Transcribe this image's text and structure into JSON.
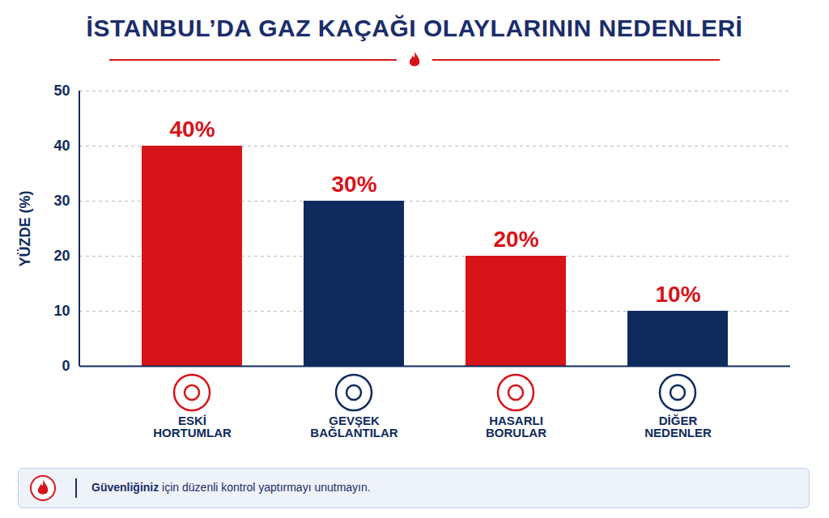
{
  "chart_data": {
    "type": "bar",
    "title": "İSTANBUL’DA GAZ KAÇAĞI OLAYLARININ NEDENLERİ",
    "y_label": "YÜZDE (%)",
    "categories": [
      "ESKİ HORTUMLAR",
      "GEVŞEK BAĞLANTILAR",
      "HASARLI BORULAR",
      "DİĞER NEDENLER"
    ],
    "values": [
      40,
      30,
      20,
      10
    ],
    "value_labels": [
      "40%",
      "30%",
      "20%",
      "10%"
    ],
    "colors": [
      "#d7141a",
      "#0f2b5e",
      "#d7141a",
      "#0f2b5e"
    ],
    "ylim": [
      0,
      50
    ],
    "yticks": [
      0,
      10,
      20,
      30,
      40,
      50
    ],
    "grid": true,
    "data_labels": true,
    "annotations": [
      "Güvenliğiniz için düzenli kontrol yaptırmayı unutmayın."
    ]
  }
}
